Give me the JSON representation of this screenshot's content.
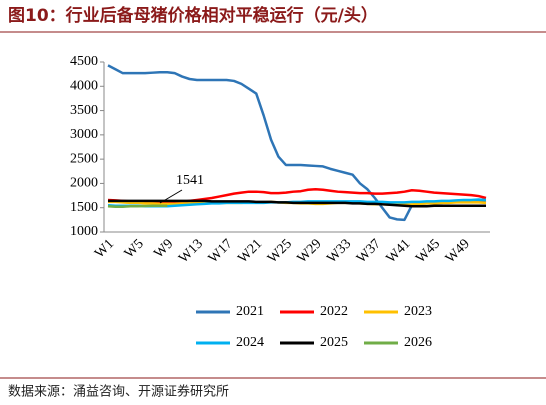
{
  "chart_data": {
    "type": "line",
    "title": "图10：行业后备母猪价格相对平稳运行（元/头）",
    "source": "数据来源：涌益咨询、开源证券研究所",
    "categories": [
      "W1",
      null,
      null,
      null,
      "W5",
      null,
      null,
      null,
      "W9",
      null,
      null,
      null,
      "W13",
      null,
      null,
      null,
      "W17",
      null,
      null,
      null,
      "W21",
      null,
      null,
      null,
      "W25",
      null,
      null,
      null,
      "W29",
      null,
      null,
      null,
      "W33",
      null,
      null,
      null,
      "W37",
      null,
      null,
      null,
      "W41",
      null,
      null,
      null,
      "W45",
      null,
      null,
      null,
      "W49",
      null,
      null,
      null
    ],
    "ylim": [
      1000,
      4500
    ],
    "yticks": [
      1000,
      1500,
      2000,
      2500,
      3000,
      3500,
      4000,
      4500
    ],
    "annotations": [
      {
        "text": "1541"
      }
    ],
    "series": [
      {
        "name": "2021",
        "color": "#2e75b6",
        "values": [
          4430,
          4350,
          4270,
          4270,
          4270,
          4270,
          4280,
          4290,
          4290,
          4270,
          4200,
          4150,
          4130,
          4130,
          4130,
          4130,
          4130,
          4110,
          4050,
          3950,
          3850,
          3400,
          2900,
          2550,
          2380,
          2380,
          2380,
          2370,
          2360,
          2350,
          2300,
          2260,
          2220,
          2180,
          2000,
          1880,
          1700,
          1500,
          1300,
          1260,
          1250,
          1550,
          1580,
          1590,
          1600,
          1600,
          1610,
          1620,
          1620,
          1630,
          1640,
          1650
        ]
      },
      {
        "name": "2022",
        "color": "#ff0000",
        "values": [
          1660,
          1650,
          1640,
          1630,
          1620,
          1610,
          1600,
          1600,
          1600,
          1610,
          1620,
          1640,
          1660,
          1680,
          1700,
          1730,
          1760,
          1790,
          1810,
          1830,
          1830,
          1820,
          1800,
          1800,
          1810,
          1830,
          1840,
          1870,
          1880,
          1870,
          1850,
          1830,
          1820,
          1810,
          1800,
          1800,
          1790,
          1790,
          1800,
          1810,
          1830,
          1860,
          1850,
          1830,
          1810,
          1800,
          1790,
          1780,
          1770,
          1760,
          1740,
          1700
        ]
      },
      {
        "name": "2023",
        "color": "#ffc000",
        "values": [
          1620,
          1620,
          1610,
          1600,
          1600,
          1590,
          1590,
          1580,
          1580,
          1580,
          1590,
          1590,
          1600,
          1600,
          1600,
          1600,
          1600,
          1600,
          1600,
          1610,
          1610,
          1610,
          1620,
          1610,
          1600,
          1600,
          1590,
          1590,
          1580,
          1580,
          1590,
          1600,
          1600,
          1600,
          1590,
          1580,
          1570,
          1570,
          1560,
          1560,
          1560,
          1570,
          1580,
          1590,
          1590,
          1600,
          1600,
          1610,
          1610,
          1610,
          1610,
          1600
        ]
      },
      {
        "name": "2024",
        "color": "#00b0f0",
        "values": [
          1550,
          1540,
          1540,
          1540,
          1540,
          1530,
          1530,
          1530,
          1530,
          1540,
          1550,
          1560,
          1570,
          1580,
          1590,
          1590,
          1600,
          1600,
          1600,
          1600,
          1600,
          1600,
          1610,
          1610,
          1610,
          1620,
          1620,
          1630,
          1630,
          1630,
          1630,
          1630,
          1630,
          1630,
          1630,
          1620,
          1620,
          1620,
          1610,
          1610,
          1610,
          1620,
          1620,
          1630,
          1630,
          1640,
          1640,
          1650,
          1660,
          1660,
          1670,
          1660
        ]
      },
      {
        "name": "2025",
        "color": "#000000",
        "values": [
          1640,
          1640,
          1640,
          1640,
          1640,
          1640,
          1640,
          1640,
          1640,
          1640,
          1640,
          1640,
          1640,
          1640,
          1630,
          1630,
          1630,
          1630,
          1630,
          1630,
          1620,
          1620,
          1620,
          1610,
          1610,
          1600,
          1600,
          1600,
          1600,
          1600,
          1600,
          1600,
          1600,
          1590,
          1590,
          1580,
          1580,
          1570,
          1560,
          1550,
          1540,
          1530,
          1530,
          1530,
          1540,
          1540,
          1540,
          1540,
          1540,
          1540,
          1540,
          1540
        ]
      },
      {
        "name": "2026",
        "color": "#70ad47",
        "values": [
          1530,
          1520,
          1520,
          1530,
          1530,
          1535,
          1540,
          1541,
          1541,
          null,
          null,
          null,
          null,
          null,
          null,
          null,
          null,
          null,
          null,
          null,
          null,
          null,
          null,
          null,
          null,
          null,
          null,
          null,
          null,
          null,
          null,
          null,
          null,
          null,
          null,
          null,
          null,
          null,
          null,
          null,
          null,
          null,
          null,
          null,
          null,
          null,
          null,
          null,
          null,
          null,
          null,
          null
        ]
      }
    ]
  }
}
